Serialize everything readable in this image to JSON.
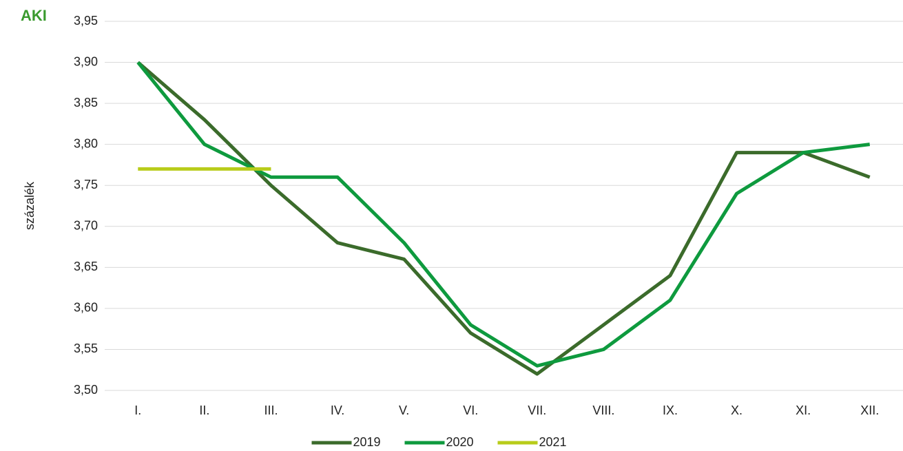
{
  "logo": "AKI",
  "chart_data": {
    "type": "line",
    "y_label": "százalék",
    "categories": [
      "I.",
      "II.",
      "III.",
      "IV.",
      "V.",
      "VI.",
      "VII.",
      "VIII.",
      "IX.",
      "X.",
      "XI.",
      "XII."
    ],
    "series": [
      {
        "name": "2019",
        "color": "#3b6b2b",
        "values": [
          3.9,
          3.83,
          3.75,
          3.68,
          3.66,
          3.57,
          3.52,
          3.58,
          3.64,
          3.79,
          3.79,
          3.76
        ]
      },
      {
        "name": "2020",
        "color": "#0e9a3e",
        "values": [
          3.9,
          3.8,
          3.76,
          3.76,
          3.68,
          3.58,
          3.53,
          3.55,
          3.61,
          3.74,
          3.79,
          3.8
        ]
      },
      {
        "name": "2021",
        "color": "#b8cc1a",
        "values": [
          3.77,
          3.77,
          3.77,
          null,
          null,
          null,
          null,
          null,
          null,
          null,
          null,
          null
        ]
      }
    ],
    "ylim": [
      3.5,
      3.95
    ],
    "yticks": [
      {
        "value": 3.5,
        "label": "3,50"
      },
      {
        "value": 3.55,
        "label": "3,55"
      },
      {
        "value": 3.6,
        "label": "3,60"
      },
      {
        "value": 3.65,
        "label": "3,65"
      },
      {
        "value": 3.7,
        "label": "3,70"
      },
      {
        "value": 3.75,
        "label": "3,75"
      },
      {
        "value": 3.8,
        "label": "3,80"
      },
      {
        "value": 3.85,
        "label": "3,85"
      },
      {
        "value": 3.9,
        "label": "3,90"
      },
      {
        "value": 3.95,
        "label": "3,95"
      }
    ],
    "grid": true,
    "legend": "bottom"
  }
}
